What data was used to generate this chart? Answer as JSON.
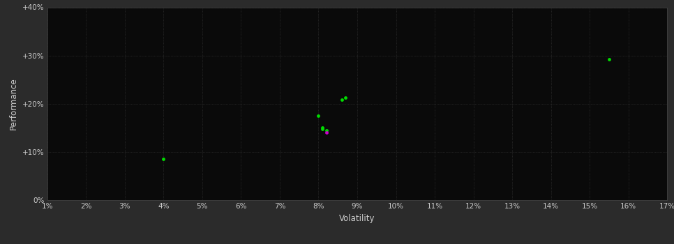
{
  "background_color": "#2b2b2b",
  "plot_bg_color": "#0a0a0a",
  "grid_color": "#3a3a3a",
  "text_color": "#cccccc",
  "point_color": "#00dd00",
  "point_color2": "#cc00cc",
  "xlabel": "Volatility",
  "ylabel": "Performance",
  "xlim": [
    0.01,
    0.17
  ],
  "ylim": [
    0.0,
    0.4
  ],
  "xticks": [
    0.01,
    0.02,
    0.03,
    0.04,
    0.05,
    0.06,
    0.07,
    0.08,
    0.09,
    0.1,
    0.11,
    0.12,
    0.13,
    0.14,
    0.15,
    0.16,
    0.17
  ],
  "yticks": [
    0.0,
    0.1,
    0.2,
    0.3,
    0.4
  ],
  "points_green": [
    [
      0.04,
      0.085
    ],
    [
      0.08,
      0.175
    ],
    [
      0.081,
      0.147
    ],
    [
      0.081,
      0.151
    ],
    [
      0.082,
      0.144
    ],
    [
      0.086,
      0.208
    ],
    [
      0.087,
      0.213
    ],
    [
      0.155,
      0.292
    ]
  ],
  "points_magenta": [
    [
      0.082,
      0.14
    ]
  ]
}
